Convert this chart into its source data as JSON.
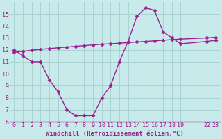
{
  "line1_x": [
    0,
    1,
    2,
    3,
    4,
    5,
    6,
    7,
    8,
    9,
    10,
    11,
    12,
    13,
    14,
    15,
    16,
    17,
    18,
    19,
    22,
    23
  ],
  "line1_y": [
    12.0,
    11.5,
    11.0,
    11.0,
    9.5,
    8.5,
    7.0,
    6.5,
    6.5,
    6.5,
    8.0,
    9.0,
    11.0,
    12.7,
    14.8,
    15.5,
    15.3,
    13.5,
    13.0,
    12.5,
    12.7,
    12.8
  ],
  "line2_x": [
    0,
    1,
    2,
    3,
    4,
    5,
    6,
    7,
    8,
    9,
    10,
    11,
    12,
    13,
    14,
    15,
    16,
    17,
    18,
    19,
    22,
    23
  ],
  "line2_y": [
    11.8,
    11.88,
    11.96,
    12.04,
    12.1,
    12.17,
    12.23,
    12.29,
    12.35,
    12.41,
    12.47,
    12.5,
    12.55,
    12.6,
    12.65,
    12.7,
    12.75,
    12.8,
    12.85,
    12.9,
    13.0,
    13.05
  ],
  "line_color": "#9b1f8e",
  "bg_color": "#c8eaea",
  "grid_color": "#aad4d4",
  "axis_line_color": "#9b1f8e",
  "xlabel": "Windchill (Refroidissement éolien,°C)",
  "xlim": [
    -0.5,
    23.5
  ],
  "ylim": [
    6,
    16
  ],
  "xticks": [
    0,
    1,
    2,
    3,
    4,
    5,
    6,
    7,
    8,
    9,
    10,
    11,
    12,
    13,
    14,
    15,
    16,
    17,
    18,
    19,
    22,
    23
  ],
  "yticks": [
    6,
    7,
    8,
    9,
    10,
    11,
    12,
    13,
    14,
    15
  ],
  "marker": "D",
  "markersize": 2.5,
  "linewidth": 1.0,
  "xlabel_fontsize": 6.5,
  "tick_fontsize": 6.0
}
